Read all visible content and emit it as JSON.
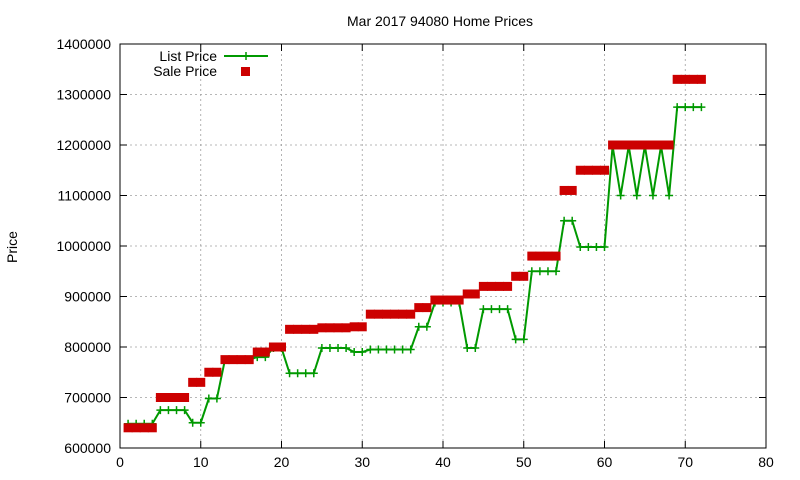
{
  "chart_data": {
    "type": "line",
    "title": "Mar 2017 94080 Home Prices",
    "xlabel": "",
    "ylabel": "Price",
    "xlim": [
      0,
      80
    ],
    "ylim": [
      600000,
      1400000
    ],
    "x_ticks": [
      0,
      10,
      20,
      30,
      40,
      50,
      60,
      70,
      80
    ],
    "y_ticks": [
      600000,
      700000,
      800000,
      900000,
      1000000,
      1100000,
      1200000,
      1300000,
      1400000
    ],
    "grid": true,
    "legend_position": "top-left",
    "series": [
      {
        "name": "List Price",
        "style": "line-plus",
        "color": "#009900",
        "x": [
          1,
          2,
          3,
          4,
          5,
          6,
          7,
          8,
          9,
          10,
          11,
          12,
          13,
          14,
          15,
          16,
          17,
          18,
          19,
          20,
          21,
          22,
          23,
          24,
          25,
          26,
          27,
          28,
          29,
          30,
          31,
          32,
          33,
          34,
          35,
          36,
          37,
          38,
          39,
          40,
          41,
          42,
          43,
          44,
          45,
          46,
          47,
          48,
          49,
          50,
          51,
          52,
          53,
          54,
          55,
          56,
          57,
          58,
          59,
          60,
          61,
          62,
          63,
          64,
          65,
          66,
          67,
          68,
          69,
          70,
          71,
          72
        ],
        "values": [
          648000,
          648000,
          648000,
          648000,
          675000,
          675000,
          675000,
          675000,
          650000,
          650000,
          698000,
          698000,
          775000,
          775000,
          775000,
          775000,
          780000,
          780000,
          798000,
          798000,
          748000,
          748000,
          748000,
          748000,
          798000,
          798000,
          798000,
          798000,
          790000,
          790000,
          795000,
          795000,
          795000,
          795000,
          795000,
          795000,
          840000,
          840000,
          888000,
          888000,
          888000,
          888000,
          798000,
          798000,
          875000,
          875000,
          875000,
          875000,
          815000,
          815000,
          950000,
          950000,
          950000,
          950000,
          1050000,
          1050000,
          998000,
          998000,
          998000,
          998000,
          1198000,
          1100000,
          1198000,
          1100000,
          1198000,
          1100000,
          1198000,
          1100000,
          1275000,
          1275000,
          1275000,
          1275000
        ]
      },
      {
        "name": "Sale Price",
        "style": "points-square",
        "color": "#cc0000",
        "x": [
          1,
          2,
          3,
          4,
          5,
          6,
          7,
          8,
          9,
          10,
          11,
          12,
          13,
          14,
          15,
          16,
          17,
          18,
          19,
          20,
          21,
          22,
          23,
          24,
          25,
          26,
          27,
          28,
          29,
          30,
          31,
          32,
          33,
          34,
          35,
          36,
          37,
          38,
          39,
          40,
          41,
          42,
          43,
          44,
          45,
          46,
          47,
          48,
          49,
          50,
          51,
          52,
          53,
          54,
          55,
          56,
          57,
          58,
          59,
          60,
          61,
          62,
          63,
          64,
          65,
          66,
          67,
          68,
          69,
          70,
          71,
          72
        ],
        "values": [
          640000,
          640000,
          640000,
          640000,
          700000,
          700000,
          700000,
          700000,
          730000,
          730000,
          750000,
          750000,
          775000,
          775000,
          775000,
          775000,
          790000,
          790000,
          800000,
          800000,
          835000,
          835000,
          835000,
          835000,
          838000,
          838000,
          838000,
          838000,
          840000,
          840000,
          865000,
          865000,
          865000,
          865000,
          865000,
          865000,
          878000,
          878000,
          893000,
          893000,
          893000,
          893000,
          905000,
          905000,
          920000,
          920000,
          920000,
          920000,
          940000,
          940000,
          980000,
          980000,
          980000,
          980000,
          1110000,
          1110000,
          1150000,
          1150000,
          1150000,
          1150000,
          1200000,
          1200000,
          1200000,
          1200000,
          1200000,
          1200000,
          1200000,
          1200000,
          1330000,
          1330000,
          1330000,
          1330000
        ]
      }
    ]
  }
}
